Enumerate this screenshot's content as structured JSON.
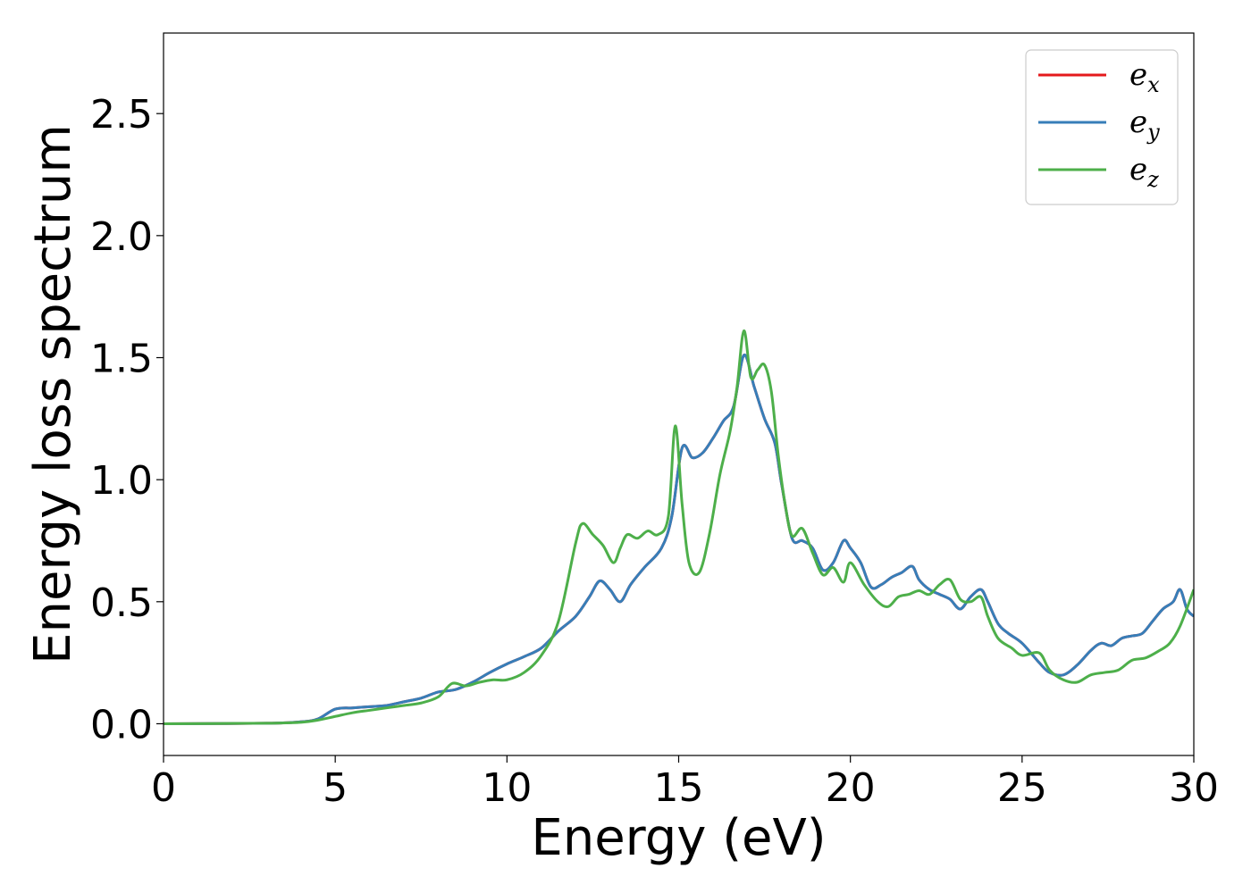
{
  "chart_data": {
    "type": "line",
    "title": "",
    "xlabel": "Energy (eV)",
    "ylabel": "Energy loss spectrum",
    "xlim": [
      0,
      30
    ],
    "ylim": [
      -0.13,
      2.83
    ],
    "xticks": [
      0,
      5,
      10,
      15,
      20,
      25,
      30
    ],
    "xtick_labels": [
      "0",
      "5",
      "10",
      "15",
      "20",
      "25",
      "30"
    ],
    "yticks": [
      0.0,
      0.5,
      1.0,
      1.5,
      2.0,
      2.5
    ],
    "ytick_labels": [
      "0.0",
      "0.5",
      "1.0",
      "1.5",
      "2.0",
      "2.5"
    ],
    "grid": false,
    "legend_position": "top-right",
    "series": [
      {
        "name": "e_x",
        "legend_base": "e",
        "legend_sub": "x",
        "color": "#e41a1c",
        "x": [
          0,
          3,
          4,
          4.5,
          5,
          5.5,
          6,
          6.5,
          7,
          7.5,
          8,
          8.5,
          9,
          9.5,
          10,
          10.5,
          11,
          11.5,
          12,
          12.4,
          12.7,
          13,
          13.3,
          13.6,
          14,
          14.5,
          14.8,
          15.1,
          15.4,
          15.7,
          16,
          16.3,
          16.6,
          16.9,
          17.2,
          17.5,
          17.8,
          18,
          18.3,
          18.6,
          18.9,
          19.2,
          19.5,
          19.8,
          20,
          20.3,
          20.6,
          20.9,
          21.2,
          21.5,
          21.8,
          22,
          22.3,
          22.6,
          22.9,
          23.2,
          23.5,
          23.8,
          24,
          24.3,
          24.6,
          25,
          25.5,
          25.8,
          26.2,
          26.6,
          27,
          27.3,
          27.6,
          27.9,
          28.2,
          28.5,
          28.8,
          29.1,
          29.4,
          29.6,
          29.8,
          30
        ],
        "y": [
          0,
          0.002,
          0.008,
          0.02,
          0.06,
          0.065,
          0.07,
          0.075,
          0.09,
          0.105,
          0.13,
          0.14,
          0.17,
          0.21,
          0.245,
          0.275,
          0.31,
          0.38,
          0.44,
          0.52,
          0.585,
          0.55,
          0.5,
          0.57,
          0.64,
          0.72,
          0.85,
          1.13,
          1.09,
          1.11,
          1.17,
          1.24,
          1.3,
          1.51,
          1.38,
          1.25,
          1.15,
          0.98,
          0.76,
          0.75,
          0.72,
          0.63,
          0.66,
          0.75,
          0.72,
          0.66,
          0.56,
          0.57,
          0.6,
          0.62,
          0.645,
          0.59,
          0.55,
          0.53,
          0.51,
          0.47,
          0.52,
          0.55,
          0.5,
          0.41,
          0.37,
          0.33,
          0.25,
          0.21,
          0.2,
          0.24,
          0.3,
          0.33,
          0.32,
          0.35,
          0.36,
          0.37,
          0.42,
          0.47,
          0.5,
          0.55,
          0.47,
          0.44
        ]
      },
      {
        "name": "e_y",
        "legend_base": "e",
        "legend_sub": "y",
        "color": "#377eb8",
        "x": [
          0,
          3,
          4,
          4.5,
          5,
          5.5,
          6,
          6.5,
          7,
          7.5,
          8,
          8.5,
          9,
          9.5,
          10,
          10.5,
          11,
          11.5,
          12,
          12.4,
          12.7,
          13,
          13.3,
          13.6,
          14,
          14.5,
          14.8,
          15.1,
          15.4,
          15.7,
          16,
          16.3,
          16.6,
          16.9,
          17.2,
          17.5,
          17.8,
          18,
          18.3,
          18.6,
          18.9,
          19.2,
          19.5,
          19.8,
          20,
          20.3,
          20.6,
          20.9,
          21.2,
          21.5,
          21.8,
          22,
          22.3,
          22.6,
          22.9,
          23.2,
          23.5,
          23.8,
          24,
          24.3,
          24.6,
          25,
          25.5,
          25.8,
          26.2,
          26.6,
          27,
          27.3,
          27.6,
          27.9,
          28.2,
          28.5,
          28.8,
          29.1,
          29.4,
          29.6,
          29.8,
          30
        ],
        "y": [
          0,
          0.002,
          0.008,
          0.02,
          0.06,
          0.065,
          0.07,
          0.075,
          0.09,
          0.105,
          0.13,
          0.14,
          0.17,
          0.21,
          0.245,
          0.275,
          0.31,
          0.38,
          0.44,
          0.52,
          0.585,
          0.55,
          0.5,
          0.57,
          0.64,
          0.72,
          0.85,
          1.13,
          1.09,
          1.11,
          1.17,
          1.24,
          1.3,
          1.51,
          1.38,
          1.25,
          1.15,
          0.98,
          0.76,
          0.75,
          0.72,
          0.63,
          0.66,
          0.75,
          0.72,
          0.66,
          0.56,
          0.57,
          0.6,
          0.62,
          0.645,
          0.59,
          0.55,
          0.53,
          0.51,
          0.47,
          0.52,
          0.55,
          0.5,
          0.41,
          0.37,
          0.33,
          0.25,
          0.21,
          0.2,
          0.24,
          0.3,
          0.33,
          0.32,
          0.35,
          0.36,
          0.37,
          0.42,
          0.47,
          0.5,
          0.55,
          0.47,
          0.44
        ]
      },
      {
        "name": "e_z",
        "legend_base": "e",
        "legend_sub": "z",
        "color": "#4daf4a",
        "x": [
          0,
          3,
          4,
          4.5,
          5,
          5.5,
          6,
          6.5,
          7,
          7.5,
          8,
          8.4,
          8.8,
          9.2,
          9.6,
          10,
          10.5,
          11,
          11.5,
          12,
          12.2,
          12.5,
          12.8,
          13.1,
          13.3,
          13.5,
          13.8,
          14.1,
          14.4,
          14.7,
          14.9,
          15.1,
          15.3,
          15.6,
          15.9,
          16.2,
          16.5,
          16.7,
          16.9,
          17.1,
          17.3,
          17.5,
          17.7,
          17.9,
          18.1,
          18.3,
          18.6,
          18.9,
          19.2,
          19.5,
          19.8,
          20,
          20.4,
          20.8,
          21.1,
          21.4,
          21.7,
          22,
          22.3,
          22.6,
          22.9,
          23.2,
          23.5,
          23.8,
          24,
          24.3,
          24.7,
          25,
          25.5,
          25.8,
          26.2,
          26.6,
          27,
          27.4,
          27.8,
          28.2,
          28.6,
          29,
          29.3,
          29.6,
          30
        ],
        "y": [
          0,
          0.002,
          0.006,
          0.015,
          0.03,
          0.045,
          0.055,
          0.065,
          0.075,
          0.085,
          0.11,
          0.165,
          0.155,
          0.17,
          0.18,
          0.18,
          0.21,
          0.28,
          0.42,
          0.74,
          0.82,
          0.775,
          0.73,
          0.66,
          0.72,
          0.775,
          0.76,
          0.79,
          0.775,
          0.85,
          1.22,
          0.9,
          0.66,
          0.62,
          0.78,
          1.02,
          1.2,
          1.38,
          1.61,
          1.42,
          1.45,
          1.47,
          1.36,
          1.1,
          0.9,
          0.77,
          0.8,
          0.7,
          0.61,
          0.64,
          0.58,
          0.66,
          0.57,
          0.5,
          0.48,
          0.52,
          0.53,
          0.545,
          0.53,
          0.57,
          0.59,
          0.51,
          0.5,
          0.52,
          0.44,
          0.35,
          0.31,
          0.28,
          0.29,
          0.22,
          0.18,
          0.17,
          0.2,
          0.21,
          0.22,
          0.26,
          0.27,
          0.3,
          0.33,
          0.4,
          0.55
        ]
      }
    ]
  }
}
